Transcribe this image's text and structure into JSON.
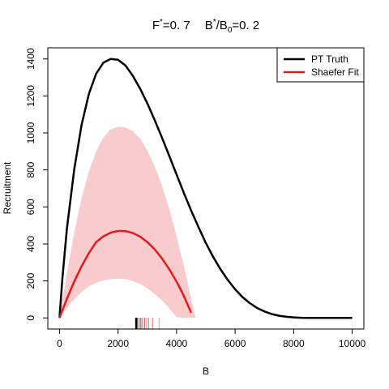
{
  "chart_data": {
    "type": "line",
    "title": {
      "f_label": "F",
      "f_sup": "*",
      "f_value": "=0. 7",
      "b_label": "B",
      "b_sup": "*",
      "b_slash": "/B",
      "b_sub": "0",
      "b_value": "=0. 2"
    },
    "xlabel": "B",
    "ylabel": "Recruitment",
    "xlim": [
      -400,
      10400
    ],
    "ylim": [
      -60,
      1460
    ],
    "x_ticks": [
      {
        "value": 0,
        "label": "0"
      },
      {
        "value": 2000,
        "label": "2000"
      },
      {
        "value": 4000,
        "label": "4000"
      },
      {
        "value": 6000,
        "label": "6000"
      },
      {
        "value": 8000,
        "label": "8000"
      },
      {
        "value": 10000,
        "label": "10000"
      }
    ],
    "y_ticks": [
      {
        "value": 0,
        "label": "0"
      },
      {
        "value": 200,
        "label": "200"
      },
      {
        "value": 400,
        "label": "400"
      },
      {
        "value": 600,
        "label": "600"
      },
      {
        "value": 800,
        "label": "800"
      },
      {
        "value": 1000,
        "label": "1000"
      },
      {
        "value": 1200,
        "label": "1200"
      },
      {
        "value": 1400,
        "label": "1400"
      }
    ],
    "series": [
      {
        "name": "PT Truth",
        "color": "#000000",
        "x": [
          0,
          100,
          250,
          500,
          750,
          1000,
          1250,
          1500,
          1750,
          2000,
          2250,
          2500,
          2750,
          3000,
          3250,
          3500,
          3750,
          4000,
          4250,
          4500,
          4750,
          5000,
          5250,
          5500,
          5750,
          6000,
          6250,
          6500,
          6750,
          7000,
          7250,
          7500,
          7750,
          8000,
          8250,
          8500,
          8750,
          9000,
          9250,
          9500,
          9750,
          10000
        ],
        "y": [
          0,
          220,
          480,
          800,
          1040,
          1210,
          1320,
          1380,
          1400,
          1395,
          1365,
          1310,
          1240,
          1160,
          1070,
          975,
          875,
          775,
          675,
          580,
          490,
          405,
          330,
          263,
          205,
          155,
          113,
          80,
          54,
          35,
          21,
          12,
          6,
          3,
          1,
          0,
          0,
          0,
          0,
          0,
          0,
          0
        ]
      },
      {
        "name": "Shaefer Fit",
        "color": "#e41a1c",
        "x": [
          0,
          250,
          500,
          750,
          1000,
          1250,
          1500,
          1750,
          2000,
          2100,
          2250,
          2500,
          2750,
          3000,
          3250,
          3500,
          3750,
          4000,
          4200,
          4350,
          4500
        ],
        "y": [
          0,
          103,
          196,
          278,
          350,
          410,
          441,
          461,
          470,
          470,
          469,
          459,
          440,
          410,
          371,
          322,
          263,
          196,
          135,
          82,
          28
        ]
      }
    ],
    "confidence_band": {
      "color": "#f8cccc",
      "x": [
        0,
        250,
        500,
        750,
        1000,
        1250,
        1500,
        1750,
        2000,
        2100,
        2250,
        2500,
        2750,
        3000,
        3250,
        3500,
        3750,
        4000,
        4250,
        4500,
        4650
      ],
      "upper": [
        0,
        240,
        460,
        645,
        790,
        900,
        975,
        1020,
        1033,
        1033,
        1030,
        1010,
        970,
        905,
        820,
        715,
        590,
        440,
        280,
        100,
        0
      ],
      "lower": [
        0,
        55,
        100,
        140,
        170,
        190,
        203,
        210,
        212,
        212,
        210,
        200,
        183,
        160,
        130,
        95,
        52,
        5,
        0,
        0,
        0
      ]
    },
    "rug_ticks": [
      {
        "x": 2600,
        "color": "#000000"
      },
      {
        "x": 2620,
        "color": "#000000"
      },
      {
        "x": 2640,
        "color": "#000000"
      },
      {
        "x": 2660,
        "color": "#d62728"
      },
      {
        "x": 2720,
        "color": "#d62728"
      },
      {
        "x": 2780,
        "color": "#d62728"
      },
      {
        "x": 2830,
        "color": "#e87878"
      },
      {
        "x": 2900,
        "color": "#d62728"
      },
      {
        "x": 2980,
        "color": "#e87878"
      },
      {
        "x": 3050,
        "color": "#e87878"
      },
      {
        "x": 3180,
        "color": "#e87878"
      },
      {
        "x": 3400,
        "color": "#f0a0a0"
      }
    ],
    "legend": {
      "position": "top-right"
    },
    "grid": false
  }
}
